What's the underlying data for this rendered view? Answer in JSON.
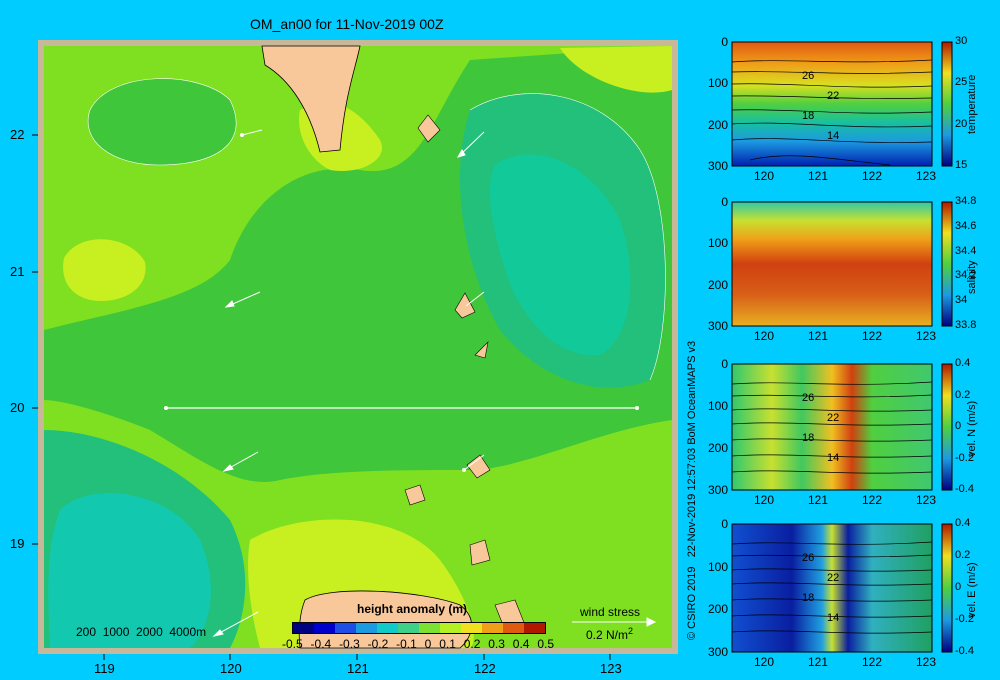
{
  "title": "OM_an00 for 11-Nov-2019 00Z",
  "map": {
    "lon_ticks": [
      "119",
      "120",
      "121",
      "122",
      "123"
    ],
    "lat_ticks": [
      "22",
      "21",
      "20",
      "19"
    ],
    "depth_contours_label": "200  1000  2000  4000m",
    "colorbar": {
      "label": "height anomaly (m)",
      "ticks": [
        "-0.5",
        "-0.4",
        "-0.3",
        "-0.2",
        "-0.1",
        "0",
        "0.1",
        "0.2",
        "0.3",
        "0.4",
        "0.5"
      ],
      "colors": [
        "#000080",
        "#0000cd",
        "#1e4ee6",
        "#1c9be0",
        "#12c9c9",
        "#3ecf88",
        "#7be234",
        "#b5f025",
        "#f0e020",
        "#f0a018",
        "#e05a10",
        "#b01800"
      ]
    },
    "wind_stress_label": "wind stress",
    "wind_stress_value": "0.2 N/m",
    "wind_stress_exp": "2"
  },
  "credit": "© CSIRO 2019   22-Nov-2019 12:57:03 BoM OceanMAPS v3",
  "sections": [
    {
      "variable": "temperature",
      "y_ticks": [
        "0",
        "100",
        "200",
        "300"
      ],
      "x_ticks": [
        "120",
        "121",
        "122",
        "123"
      ],
      "cb_ticks": [
        "30",
        "25",
        "20",
        "15"
      ],
      "contour_labels": [
        "26",
        "22",
        "18",
        "14"
      ]
    },
    {
      "variable": "salinity",
      "y_ticks": [
        "0",
        "100",
        "200",
        "300"
      ],
      "x_ticks": [
        "120",
        "121",
        "122",
        "123"
      ],
      "cb_ticks": [
        "34.8",
        "34.6",
        "34.4",
        "34.2",
        "34",
        "33.8"
      ],
      "contour_labels": []
    },
    {
      "variable": "vel. N  (m/s)",
      "y_ticks": [
        "0",
        "100",
        "200",
        "300"
      ],
      "x_ticks": [
        "120",
        "121",
        "122",
        "123"
      ],
      "cb_ticks": [
        "0.4",
        "0.2",
        "0",
        "-0.2",
        "-0.4"
      ],
      "contour_labels": [
        "26",
        "22",
        "18",
        "14"
      ]
    },
    {
      "variable": "vel. E  (m/s)",
      "y_ticks": [
        "0",
        "100",
        "200",
        "300"
      ],
      "x_ticks": [
        "120",
        "121",
        "122",
        "123"
      ],
      "cb_ticks": [
        "0.4",
        "0.2",
        "0",
        "-0.2",
        "-0.4"
      ],
      "contour_labels": [
        "26",
        "22",
        "18",
        "14"
      ]
    }
  ]
}
